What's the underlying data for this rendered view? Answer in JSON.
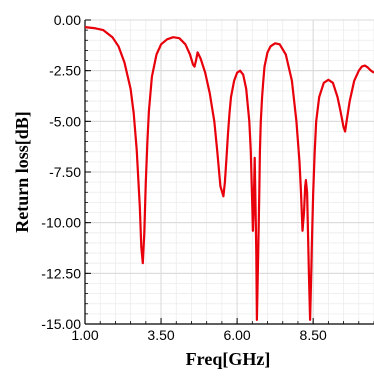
{
  "chart_data": {
    "type": "line",
    "xlabel": "Freq[GHz]",
    "ylabel": "Return loss[dB]",
    "xlim": [
      1.0,
      10.5
    ],
    "ylim": [
      -15.0,
      0.0
    ],
    "x_ticks": [
      1.0,
      3.5,
      6.0,
      8.5
    ],
    "x_tick_labels": [
      "1.00",
      "3.50",
      "6.00",
      "8.50"
    ],
    "y_ticks": [
      0.0,
      -2.5,
      -5.0,
      -7.5,
      -10.0,
      -12.5,
      -15.0
    ],
    "y_tick_labels": [
      "0.00",
      "-2.50",
      "-5.00",
      "-7.50",
      "-10.00",
      "-12.50",
      "-15.00"
    ],
    "grid": true,
    "line_color": "#e8000b",
    "grid_color": "#d9d9d9",
    "series": [
      {
        "x": [
          1.0,
          1.3,
          1.6,
          1.9,
          2.1,
          2.3,
          2.5,
          2.6,
          2.7,
          2.8,
          2.85,
          2.9,
          2.95,
          3.0,
          3.05,
          3.1,
          3.2,
          3.35,
          3.5,
          3.7,
          3.9,
          4.1,
          4.3,
          4.45,
          4.55,
          4.6,
          4.65,
          4.7,
          4.8,
          4.95,
          5.1,
          5.25,
          5.35,
          5.45,
          5.55,
          5.6,
          5.65,
          5.7,
          5.75,
          5.8,
          5.9,
          6.0,
          6.1,
          6.2,
          6.3,
          6.4,
          6.45,
          6.5,
          6.52,
          6.55,
          6.58,
          6.6,
          6.63,
          6.65,
          6.7,
          6.73,
          6.75,
          6.78,
          6.82,
          6.86,
          6.9,
          7.0,
          7.1,
          7.25,
          7.4,
          7.6,
          7.8,
          7.95,
          8.05,
          8.1,
          8.15,
          8.2,
          8.24,
          8.26,
          8.3,
          8.33,
          8.36,
          8.4,
          8.43,
          8.46,
          8.5,
          8.55,
          8.6,
          8.7,
          8.85,
          9.0,
          9.15,
          9.3,
          9.4,
          9.5,
          9.55,
          9.6,
          9.7,
          9.85,
          10.0,
          10.1,
          10.2,
          10.3,
          10.4,
          10.5
        ],
        "y": [
          -0.35,
          -0.4,
          -0.5,
          -0.85,
          -1.3,
          -2.1,
          -3.4,
          -4.6,
          -6.4,
          -9.2,
          -11.2,
          -12.0,
          -10.5,
          -8.0,
          -6.0,
          -4.5,
          -2.8,
          -1.7,
          -1.2,
          -0.95,
          -0.85,
          -0.9,
          -1.2,
          -1.7,
          -2.2,
          -2.3,
          -2.0,
          -1.6,
          -1.9,
          -2.6,
          -3.6,
          -5.0,
          -6.5,
          -8.2,
          -8.7,
          -8.0,
          -6.8,
          -5.6,
          -4.6,
          -3.8,
          -3.0,
          -2.6,
          -2.5,
          -2.7,
          -3.4,
          -5.0,
          -6.5,
          -9.2,
          -10.4,
          -9.0,
          -6.8,
          -8.8,
          -11.5,
          -14.8,
          -11.0,
          -8.5,
          -6.5,
          -5.0,
          -3.8,
          -3.0,
          -2.3,
          -1.6,
          -1.3,
          -1.15,
          -1.2,
          -1.7,
          -3.0,
          -5.0,
          -7.0,
          -8.5,
          -10.4,
          -9.5,
          -8.2,
          -7.9,
          -8.5,
          -10.5,
          -12.5,
          -14.8,
          -13.0,
          -11.0,
          -8.5,
          -6.5,
          -5.0,
          -3.8,
          -3.1,
          -2.95,
          -3.1,
          -3.8,
          -4.5,
          -5.3,
          -5.5,
          -5.0,
          -4.0,
          -3.0,
          -2.5,
          -2.3,
          -2.25,
          -2.35,
          -2.5,
          -2.6
        ]
      }
    ]
  }
}
